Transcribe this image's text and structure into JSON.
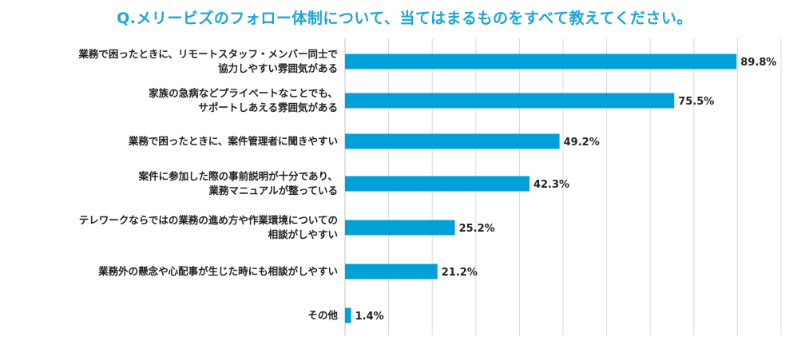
{
  "chart_data": {
    "type": "bar",
    "orientation": "horizontal",
    "title": "Q.メリービズのフォロー体制について、当てはまるものをすべて教えてください。",
    "categories": [
      [
        "業務で困ったときに、リモートスタッフ・メンバー同士で",
        "協力しやすい雰囲気がある"
      ],
      [
        "家族の急病などプライベートなことでも、",
        "サポートしあえる雰囲気がある"
      ],
      [
        "業務で困ったときに、案件管理者に聞きやすい"
      ],
      [
        "案件に参加した際の事前説明が十分であり、",
        "業務マニュアルが整っている"
      ],
      [
        "テレワークならではの業務の進め方や作業環境についての",
        "相談がしやすい"
      ],
      [
        "業務外の懸念や心配事が生じた時にも相談がしやすい"
      ],
      [
        "その他"
      ]
    ],
    "values": [
      89.8,
      75.5,
      49.2,
      42.3,
      25.2,
      21.2,
      1.4
    ],
    "value_labels": [
      "89.8%",
      "75.5%",
      "49.2%",
      "42.3%",
      "25.2%",
      "21.2%",
      "1.4%"
    ],
    "xlim": [
      0,
      100
    ],
    "grid": true,
    "bar_color": "#00a0d8",
    "grid_color": "#d9d9d9",
    "title_color": "#1aa6d9"
  }
}
